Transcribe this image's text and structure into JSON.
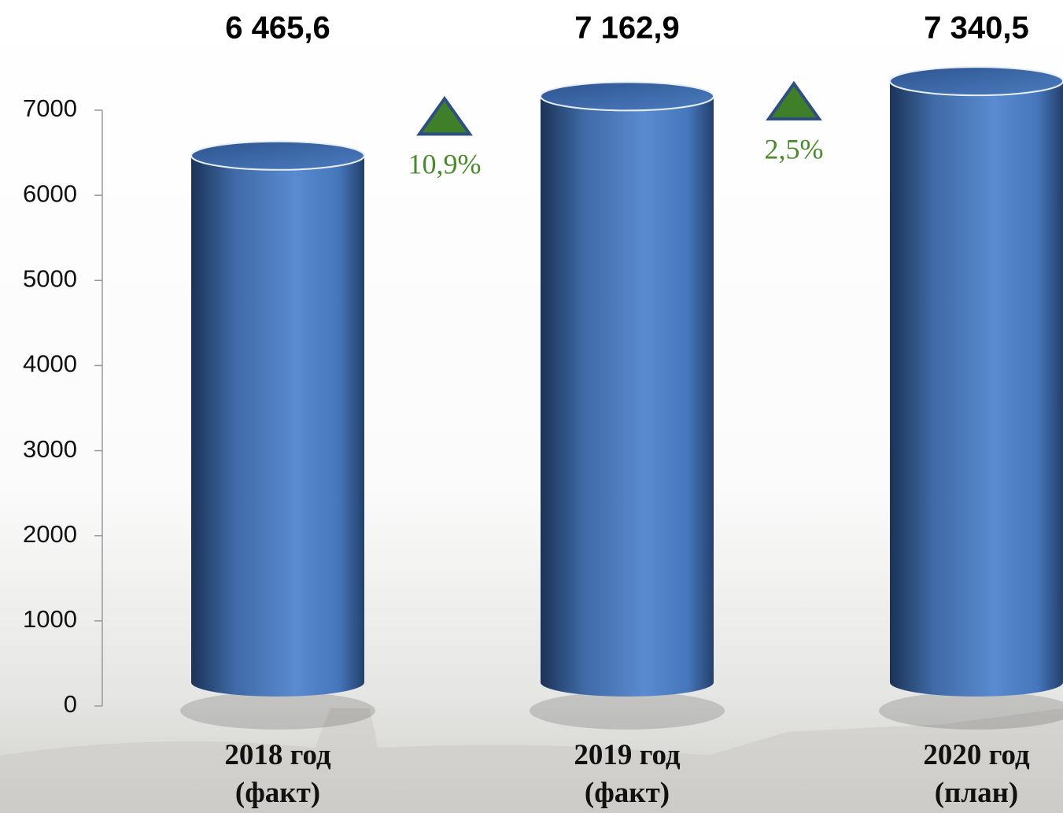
{
  "chart_data": {
    "type": "bar",
    "categories": [
      "2018 год (факт)",
      "2019 год (факт)",
      "2020 год (план)"
    ],
    "values": [
      6465.6,
      7162.9,
      7340.5
    ],
    "value_labels": [
      "6 465,6",
      "7 162,9",
      "7 340,5"
    ],
    "annotations": [
      "10,9%",
      "2,5%"
    ],
    "color": "#4f81bd",
    "ylim": [
      0,
      7000
    ],
    "yticks": [
      0,
      1000,
      2000,
      3000,
      4000,
      5000,
      6000,
      7000
    ]
  }
}
